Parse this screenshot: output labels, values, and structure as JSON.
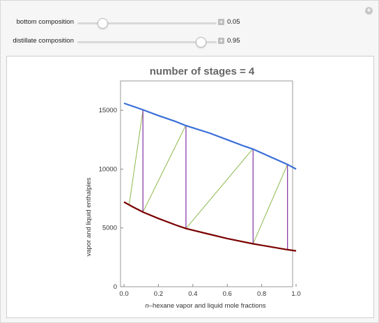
{
  "controls": [
    {
      "label": "bottom composition",
      "value": "0.05",
      "fraction": 0.05
    },
    {
      "label": "distillate composition",
      "value": "0.95",
      "fraction": 0.95
    }
  ],
  "chart_data": {
    "type": "line",
    "title": "number of stages = 4",
    "xlabel": "n-hexane vapor and liquid mole fractions",
    "xlabel_italic_prefix": "n",
    "xlabel_rest": "–hexane vapor and liquid mole fractions",
    "ylabel": "vapor and liquid enthalpies",
    "xlim": [
      0,
      1.0
    ],
    "ylim": [
      0,
      17500
    ],
    "xticks": [
      "0.0",
      "0.2",
      "0.4",
      "0.6",
      "0.8",
      "1.0"
    ],
    "yticks": [
      "0",
      "5000",
      "10000",
      "15000"
    ],
    "xtick_values": [
      0,
      0.2,
      0.4,
      0.6,
      0.8,
      1.0
    ],
    "ytick_values": [
      0,
      5000,
      10000,
      15000
    ],
    "series": [
      {
        "color": "#3a6fd8",
        "x": [
          0.0,
          0.1,
          0.2,
          0.3,
          0.36,
          0.5,
          0.6,
          0.7,
          0.75,
          0.85,
          0.95,
          1.0
        ],
        "y": [
          15600,
          15100,
          14550,
          14050,
          13700,
          13050,
          12500,
          11950,
          11700,
          11050,
          10400,
          10000
        ]
      },
      {
        "color": "#7a0000",
        "x": [
          0.0,
          0.05,
          0.11,
          0.2,
          0.3,
          0.36,
          0.5,
          0.6,
          0.75,
          0.85,
          0.95,
          1.0
        ],
        "y": [
          7200,
          6800,
          6350,
          5800,
          5250,
          4950,
          4450,
          4100,
          3650,
          3400,
          3150,
          3050
        ]
      }
    ],
    "tie_lines": {
      "color": "#8a3fa8",
      "segments": [
        {
          "x": 0.11,
          "y1": 6350,
          "y2": 15000
        },
        {
          "x": 0.36,
          "y1": 4950,
          "y2": 13750
        },
        {
          "x": 0.75,
          "y1": 3650,
          "y2": 11750
        },
        {
          "x": 0.95,
          "y1": 3150,
          "y2": 10400
        }
      ]
    },
    "operating_lines": {
      "color": "#8cb84a",
      "segments": [
        {
          "x1": 0.03,
          "y1": 7000,
          "x2": 0.11,
          "y2": 15000
        },
        {
          "x1": 0.11,
          "y1": 6350,
          "x2": 0.36,
          "y2": 13750
        },
        {
          "x1": 0.36,
          "y1": 4950,
          "x2": 0.75,
          "y2": 11750
        },
        {
          "x1": 0.75,
          "y1": 3650,
          "x2": 0.95,
          "y2": 10400
        }
      ]
    }
  }
}
